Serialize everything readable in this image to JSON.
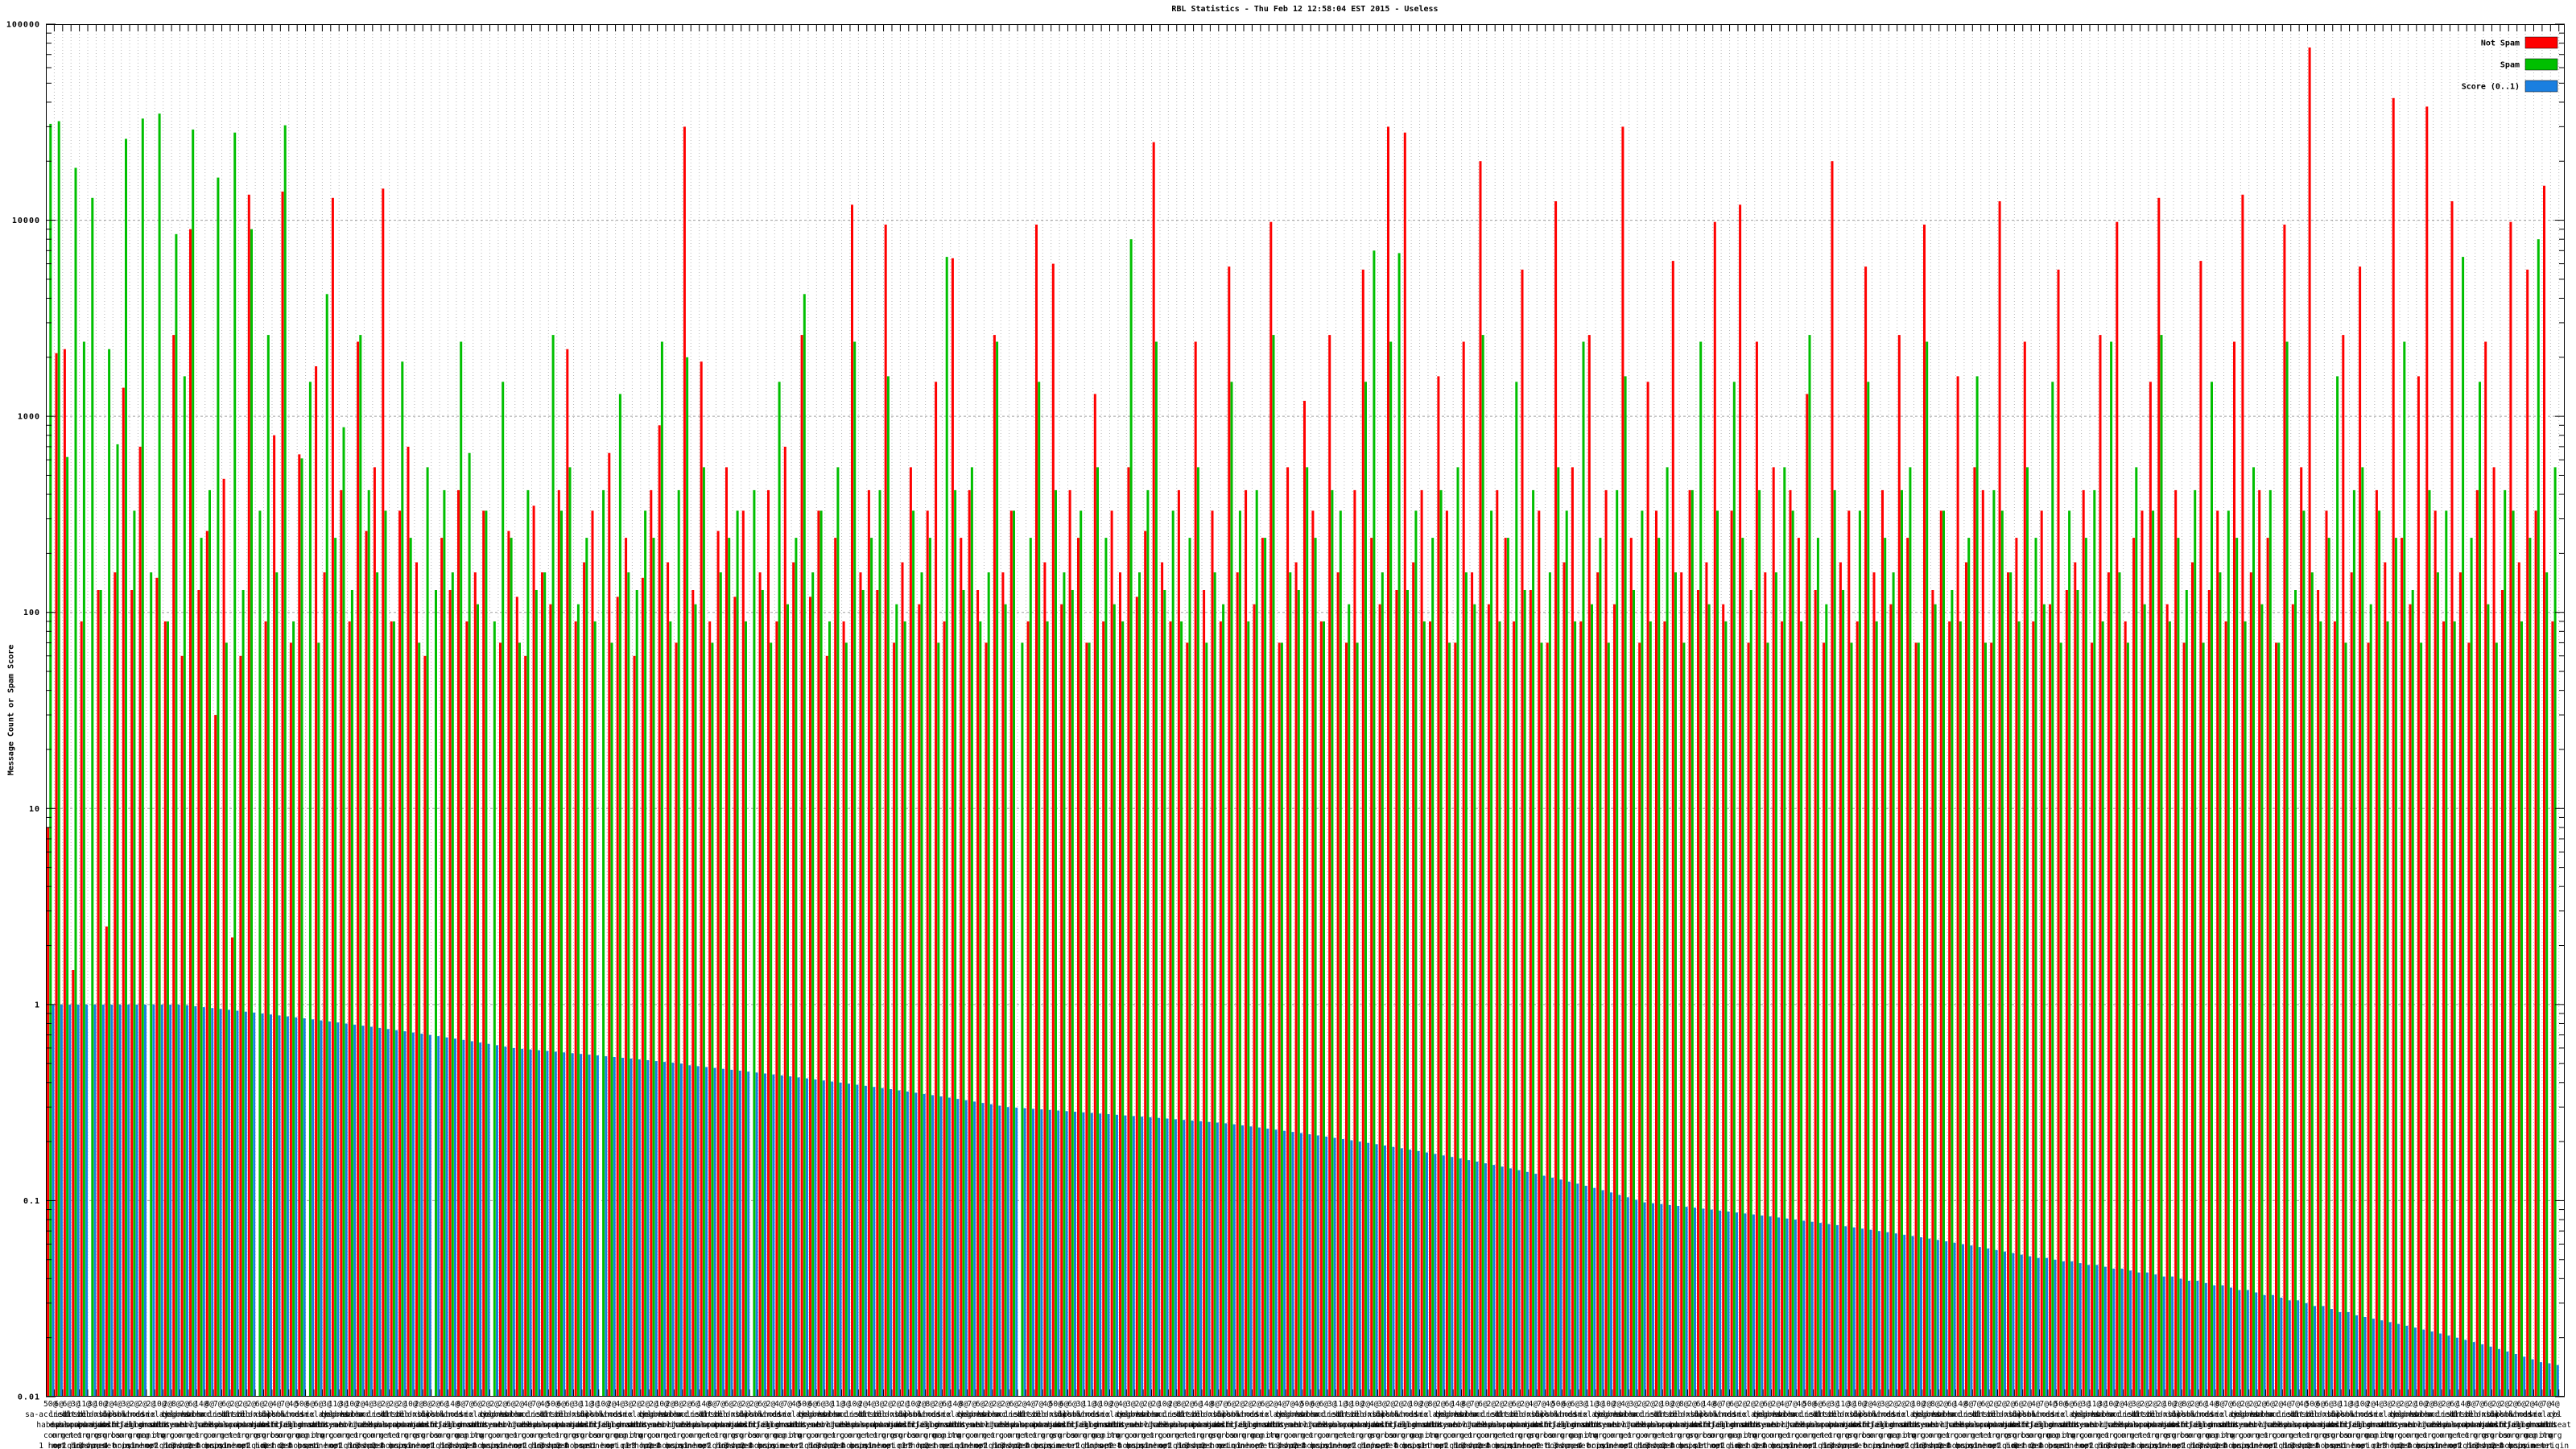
{
  "title": "RBL Statistics - Thu Feb 12 12:58:04 EST 2015 - Useless",
  "y_axis": {
    "label": "Message Count or Spam Score",
    "scale": "log",
    "min": 0.01,
    "max": 100000,
    "tick_labels": [
      "100000",
      "10000",
      "1000",
      "100",
      "10",
      "1",
      "0.1",
      "0.01"
    ]
  },
  "x_axis": {
    "labels_note": "about 300 overlapping multi-line category labels (count@rbl-name plus hop/origin lines), illegible at full scale",
    "label_pools": {
      "counts": [
        50,
        6,
        6,
        3,
        11,
        3,
        10,
        2,
        4,
        3,
        2,
        2,
        2,
        10,
        2,
        8,
        2,
        6,
        14,
        8,
        7,
        6,
        2,
        2,
        2,
        6,
        2,
        4,
        7,
        4
      ],
      "rbls": [
        "sa-accredit.habeas.com",
        "list.dsbl.org",
        "bl.spamcop.net",
        "dnsbl.sorbs.net",
        "zen.spamhaus.org",
        "sbl-xbl.spamhaus.org",
        "dnsbl.njabl.org",
        "dul.dnsbl.sorbs.net",
        "psbl.surriel.com",
        "combined.njabl.org",
        "whois.rfc-ignorant.org",
        "dsn.rfc-ignorant.org",
        "ix.dnsbl.manitu.net",
        "relays.ordb.org",
        "cbl.abuseat.org",
        "bogons.cymru.com",
        "dnsbl.ahbl.org",
        "korea.services.net",
        "bhnc.njabl.org"
      ],
      "hops": [
        [
          "1 hop"
        ],
        [
          "net",
          "origin"
        ],
        [
          "origin"
        ],
        [
          "2 hops"
        ],
        [
          "1 hop",
          "origin"
        ],
        [
          "3 hops"
        ],
        [
          "net"
        ],
        [
          "2 hops",
          "net",
          "origin"
        ],
        [
          "4 hops"
        ],
        [
          "origin"
        ],
        [
          "none"
        ]
      ]
    }
  },
  "legend": {
    "position": "top-right-inside",
    "entries": [
      {
        "label": "Not Spam",
        "color": "#ff0000"
      },
      {
        "label": "Spam",
        "color": "#00bf00"
      },
      {
        "label": "Score (0..1)",
        "color": "#1a7fe0"
      }
    ]
  },
  "chart_data": {
    "type": "bar",
    "n_groups": 300,
    "ylim": [
      0.01,
      100000
    ],
    "grid": true,
    "legend_position": "top-right-inside",
    "series": [
      {
        "name": "Not Spam",
        "color": "#ff0000",
        "values": [
          8,
          2100,
          2200,
          1.5,
          90,
          0,
          130,
          2.5,
          160,
          1400,
          130,
          700,
          0,
          150,
          90,
          2600,
          60,
          9000,
          130,
          260,
          30,
          480,
          2.2,
          60,
          13500,
          0,
          90,
          800,
          14000,
          70,
          640,
          0,
          1800,
          160,
          13000,
          420,
          90,
          2400,
          260,
          550,
          14500,
          90,
          330,
          700,
          180,
          60,
          0,
          240,
          130,
          420,
          90,
          160,
          330,
          0,
          70,
          260,
          120,
          60,
          350,
          160,
          110,
          420,
          2200,
          90,
          180,
          330,
          0,
          650,
          120,
          240,
          60,
          150,
          420,
          900,
          180,
          70,
          30000,
          130,
          1900,
          90,
          260,
          550,
          120,
          330,
          0,
          160,
          420,
          90,
          700,
          180,
          2600,
          120,
          330,
          60,
          240,
          90,
          12000,
          160,
          420,
          130,
          9500,
          70,
          180,
          550,
          110,
          330,
          1500,
          90,
          6400,
          240,
          420,
          130,
          70,
          2600,
          160,
          330,
          0,
          90,
          9500,
          180,
          6000,
          110,
          420,
          240,
          70,
          1300,
          90,
          330,
          160,
          550,
          120,
          260,
          25000,
          180,
          90,
          420,
          70,
          2400,
          130,
          330,
          90,
          5800,
          160,
          420,
          110,
          240,
          9800,
          70,
          550,
          180,
          1200,
          330,
          90,
          2600,
          160,
          70,
          420,
          5600,
          240,
          110,
          30000,
          130,
          28000,
          180,
          420,
          90,
          1600,
          330,
          70,
          2400,
          160,
          20000,
          110,
          420,
          240,
          90,
          5600,
          130,
          330,
          70,
          12500,
          180,
          550,
          90,
          2600,
          160,
          420,
          110,
          30000,
          240,
          70,
          1500,
          330,
          90,
          6200,
          160,
          420,
          130,
          180,
          9800,
          110,
          330,
          12000,
          70,
          2400,
          160,
          550,
          90,
          420,
          240,
          1300,
          130,
          70,
          20000,
          180,
          330,
          90,
          5800,
          160,
          420,
          110,
          2600,
          240,
          70,
          9500,
          130,
          330,
          90,
          1600,
          180,
          550,
          420,
          70,
          12500,
          160,
          240,
          2400,
          90,
          330,
          110,
          5600,
          130,
          180,
          420,
          70,
          2600,
          160,
          9800,
          90,
          240,
          330,
          1500,
          13000,
          110,
          420,
          70,
          180,
          6200,
          130,
          330,
          90,
          2400,
          13500,
          160,
          420,
          240,
          70,
          9500,
          110,
          550,
          76000,
          130,
          330,
          90,
          2600,
          160,
          5800,
          70,
          420,
          180,
          42000,
          240,
          110,
          1600,
          38000,
          330,
          90,
          12500,
          160,
          70,
          420,
          2400,
          550,
          130,
          9800,
          180,
          5600,
          330,
          15000,
          90
        ]
      },
      {
        "name": "Spam",
        "color": "#00bf00",
        "values": [
          31000,
          32000,
          620,
          18500,
          2400,
          13000,
          130,
          2200,
          720,
          26000,
          330,
          33000,
          160,
          35000,
          90,
          8500,
          1600,
          29000,
          240,
          420,
          16500,
          70,
          28000,
          130,
          9000,
          330,
          2600,
          160,
          30500,
          90,
          610,
          1500,
          70,
          4200,
          240,
          880,
          130,
          2600,
          420,
          160,
          330,
          90,
          1900,
          240,
          70,
          550,
          130,
          420,
          160,
          2400,
          650,
          110,
          330,
          90,
          1500,
          240,
          70,
          420,
          130,
          160,
          2600,
          330,
          550,
          110,
          240,
          90,
          420,
          70,
          1300,
          160,
          130,
          330,
          240,
          2400,
          90,
          420,
          2000,
          110,
          550,
          70,
          160,
          240,
          330,
          90,
          420,
          130,
          70,
          1500,
          110,
          240,
          4200,
          160,
          330,
          90,
          550,
          70,
          2400,
          130,
          240,
          420,
          1600,
          110,
          90,
          330,
          160,
          240,
          70,
          6500,
          420,
          130,
          550,
          90,
          160,
          2400,
          110,
          330,
          70,
          240,
          1500,
          90,
          420,
          160,
          130,
          330,
          70,
          550,
          240,
          110,
          90,
          8000,
          160,
          420,
          2400,
          130,
          330,
          90,
          240,
          550,
          70,
          160,
          110,
          1500,
          330,
          90,
          420,
          240,
          2600,
          70,
          160,
          130,
          550,
          240,
          90,
          420,
          330,
          110,
          70,
          1500,
          7000,
          160,
          2400,
          6800,
          130,
          330,
          90,
          240,
          420,
          70,
          550,
          160,
          110,
          2600,
          330,
          90,
          240,
          1500,
          130,
          420,
          70,
          160,
          550,
          330,
          90,
          2400,
          110,
          240,
          70,
          420,
          1600,
          130,
          330,
          90,
          240,
          550,
          160,
          70,
          420,
          2400,
          110,
          330,
          90,
          1500,
          240,
          130,
          420,
          70,
          160,
          550,
          330,
          90,
          2600,
          240,
          110,
          420,
          130,
          70,
          330,
          1500,
          90,
          240,
          160,
          420,
          550,
          70,
          2400,
          110,
          330,
          130,
          90,
          240,
          1600,
          70,
          420,
          330,
          160,
          90,
          550,
          240,
          110,
          1500,
          70,
          330,
          130,
          240,
          420,
          90,
          2400,
          160,
          70,
          550,
          110,
          330,
          2600,
          90,
          240,
          130,
          420,
          70,
          1500,
          160,
          330,
          240,
          90,
          550,
          110,
          420,
          70,
          2400,
          130,
          330,
          160,
          90,
          240,
          1600,
          70,
          420,
          550,
          110,
          330,
          90,
          240,
          2400,
          130,
          70,
          420,
          160,
          330,
          90,
          6500,
          240,
          1500,
          110,
          70,
          420,
          330,
          90,
          240,
          8000,
          160,
          550
        ]
      },
      {
        "name": "Score (0..1)",
        "color": "#1a7fe0",
        "values": [
          1,
          1,
          1,
          1,
          1,
          1,
          1,
          1,
          1,
          1,
          1,
          1,
          1,
          1,
          1,
          1,
          0.99,
          0.98,
          0.97,
          0.96,
          0.95,
          0.94,
          0.93,
          0.92,
          0.91,
          0.9,
          0.89,
          0.88,
          0.87,
          0.86,
          0.85,
          0.84,
          0.83,
          0.82,
          0.81,
          0.8,
          0.79,
          0.78,
          0.77,
          0.76,
          0.75,
          0.74,
          0.73,
          0.72,
          0.71,
          0.7,
          0.69,
          0.68,
          0.67,
          0.66,
          0.65,
          0.64,
          0.63,
          0.62,
          0.61,
          0.6,
          0.595,
          0.59,
          0.585,
          0.58,
          0.575,
          0.57,
          0.565,
          0.56,
          0.555,
          0.55,
          0.545,
          0.54,
          0.535,
          0.53,
          0.525,
          0.52,
          0.515,
          0.51,
          0.505,
          0.5,
          0.49,
          0.485,
          0.48,
          0.475,
          0.47,
          0.465,
          0.46,
          0.455,
          0.45,
          0.445,
          0.44,
          0.435,
          0.43,
          0.425,
          0.42,
          0.415,
          0.41,
          0.405,
          0.4,
          0.395,
          0.39,
          0.385,
          0.38,
          0.375,
          0.37,
          0.365,
          0.36,
          0.355,
          0.35,
          0.345,
          0.34,
          0.335,
          0.33,
          0.325,
          0.32,
          0.315,
          0.31,
          0.305,
          0.3,
          0.298,
          0.296,
          0.294,
          0.292,
          0.29,
          0.288,
          0.286,
          0.284,
          0.282,
          0.28,
          0.278,
          0.276,
          0.274,
          0.272,
          0.27,
          0.268,
          0.266,
          0.264,
          0.262,
          0.26,
          0.258,
          0.256,
          0.254,
          0.252,
          0.25,
          0.248,
          0.245,
          0.242,
          0.239,
          0.236,
          0.233,
          0.23,
          0.227,
          0.224,
          0.221,
          0.218,
          0.215,
          0.212,
          0.209,
          0.206,
          0.203,
          0.2,
          0.197,
          0.194,
          0.191,
          0.188,
          0.185,
          0.182,
          0.179,
          0.176,
          0.173,
          0.17,
          0.167,
          0.164,
          0.161,
          0.158,
          0.155,
          0.152,
          0.149,
          0.146,
          0.143,
          0.14,
          0.137,
          0.134,
          0.131,
          0.128,
          0.125,
          0.122,
          0.119,
          0.116,
          0.113,
          0.11,
          0.107,
          0.104,
          0.101,
          0.098,
          0.097,
          0.096,
          0.095,
          0.094,
          0.093,
          0.092,
          0.091,
          0.09,
          0.089,
          0.088,
          0.087,
          0.086,
          0.085,
          0.084,
          0.083,
          0.082,
          0.081,
          0.08,
          0.079,
          0.078,
          0.077,
          0.076,
          0.075,
          0.074,
          0.073,
          0.072,
          0.071,
          0.07,
          0.069,
          0.068,
          0.067,
          0.066,
          0.065,
          0.064,
          0.063,
          0.062,
          0.061,
          0.06,
          0.059,
          0.058,
          0.057,
          0.056,
          0.055,
          0.054,
          0.053,
          0.052,
          0.051,
          0.051,
          0.05,
          0.049,
          0.049,
          0.048,
          0.047,
          0.047,
          0.046,
          0.045,
          0.045,
          0.044,
          0.043,
          0.043,
          0.042,
          0.041,
          0.041,
          0.04,
          0.039,
          0.039,
          0.038,
          0.037,
          0.037,
          0.036,
          0.035,
          0.035,
          0.034,
          0.033,
          0.033,
          0.032,
          0.031,
          0.031,
          0.03,
          0.029,
          0.029,
          0.028,
          0.027,
          0.027,
          0.026,
          0.0255,
          0.025,
          0.0245,
          0.024,
          0.0235,
          0.023,
          0.0225,
          0.022,
          0.0215,
          0.021,
          0.0205,
          0.02,
          0.0195,
          0.019,
          0.0185,
          0.018,
          0.0175,
          0.017,
          0.0165,
          0.016,
          0.0155,
          0.015,
          0.0148,
          0.0145
        ]
      }
    ]
  }
}
